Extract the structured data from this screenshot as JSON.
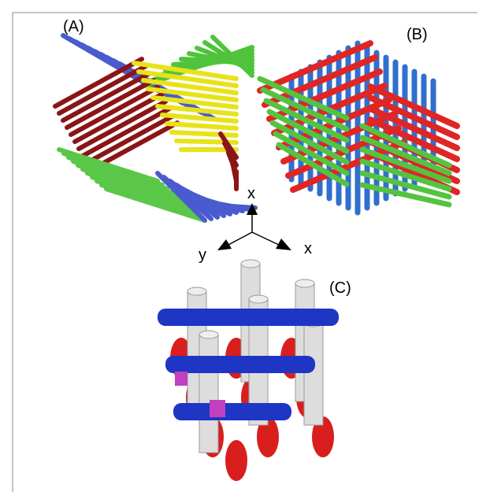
{
  "panels": [
    {
      "label": "(A)"
    },
    {
      "label": "(B)"
    },
    {
      "label": "(C)"
    }
  ],
  "axes": {
    "labels": [
      "x",
      "y",
      "x"
    ]
  }
}
